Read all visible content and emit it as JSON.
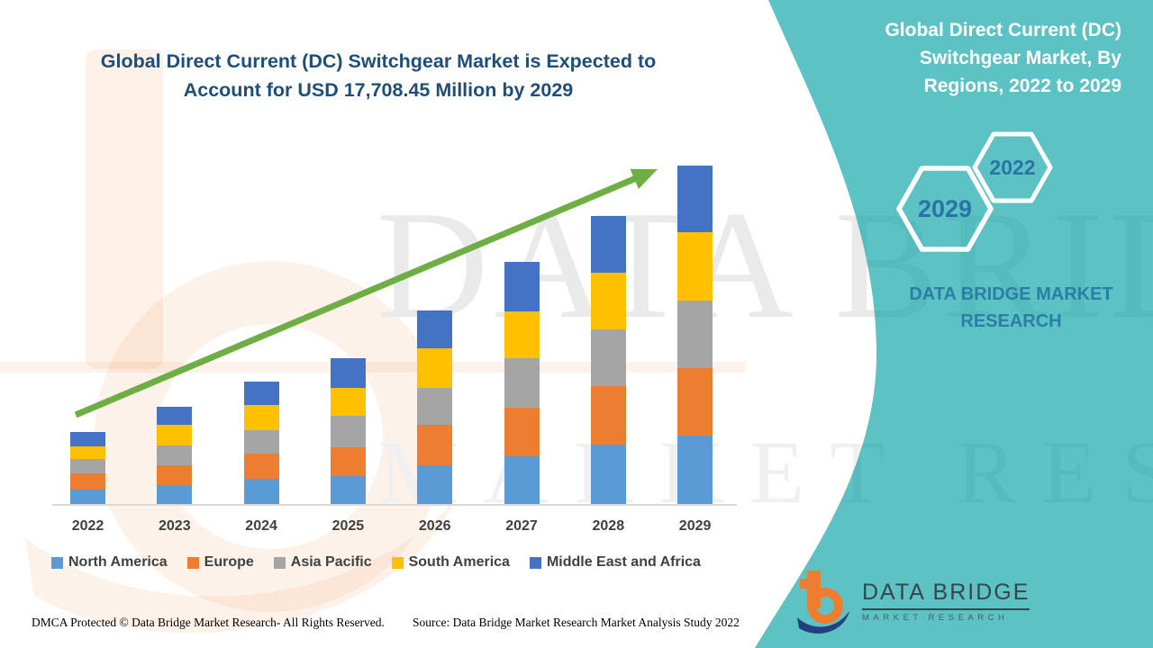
{
  "header": {
    "title_lines": [
      "Global Direct Current (DC) Switchgear Market is Expected to",
      "Account for USD 17,708.45 Million by 2029"
    ]
  },
  "sidebar": {
    "title_lines": [
      "Global Direct Current (DC)",
      "Switchgear Market, By",
      "Regions, 2022 to 2029"
    ],
    "year_badges": [
      "2029",
      "2022"
    ],
    "brand_lines": [
      "DATA BRIDGE MARKET",
      "RESEARCH"
    ]
  },
  "logo": {
    "name": "DATA BRIDGE",
    "tagline": "MARKET RESEARCH"
  },
  "footer": {
    "dmca": "DMCA Protected © Data Bridge Market Research- All Rights Reserved.",
    "source": "Source: Data Bridge Market Research Market Analysis Study 2022"
  },
  "colors": {
    "teal_panel": "#5CC2C4",
    "headline_blue": "#1F4E79",
    "trend_arrow_green": "#6FAE44",
    "badge_year_blue": "#2874A6"
  },
  "chart_data": {
    "type": "bar",
    "stacked": true,
    "title": "Global Direct Current (DC) Switchgear Market is Expected to Account for USD 17,708.45 Million by 2029",
    "unit": "USD Million",
    "categories": [
      "2022",
      "2023",
      "2024",
      "2025",
      "2026",
      "2027",
      "2028",
      "2029"
    ],
    "series": [
      {
        "name": "North America",
        "color": "#5B9BD5",
        "values": [
          754,
          989,
          1319,
          1460,
          2025,
          2496,
          3109,
          3580
        ]
      },
      {
        "name": "Europe",
        "color": "#ED7D31",
        "values": [
          848,
          1036,
          1319,
          1507,
          2120,
          2543,
          3062,
          3533
        ]
      },
      {
        "name": "Asia Pacific",
        "color": "#A5A5A5",
        "values": [
          754,
          1036,
          1225,
          1649,
          1931,
          2591,
          2967,
          3533
        ]
      },
      {
        "name": "South America",
        "color": "#FFC000",
        "values": [
          660,
          1083,
          1319,
          1460,
          2072,
          2449,
          2967,
          3580
        ]
      },
      {
        "name": "Middle East and Africa",
        "color": "#4472C4",
        "values": [
          754,
          942,
          1225,
          1554,
          1978,
          2591,
          2967,
          3482.45
        ]
      }
    ],
    "totals": [
      3770,
      5086,
      6407,
      7630,
      10126,
      12670,
      15072,
      17708.45
    ],
    "value_axis_max": 17708.45,
    "value_axis_visible": false,
    "grid": false,
    "legend_position": "bottom",
    "trend_arrow": true
  }
}
